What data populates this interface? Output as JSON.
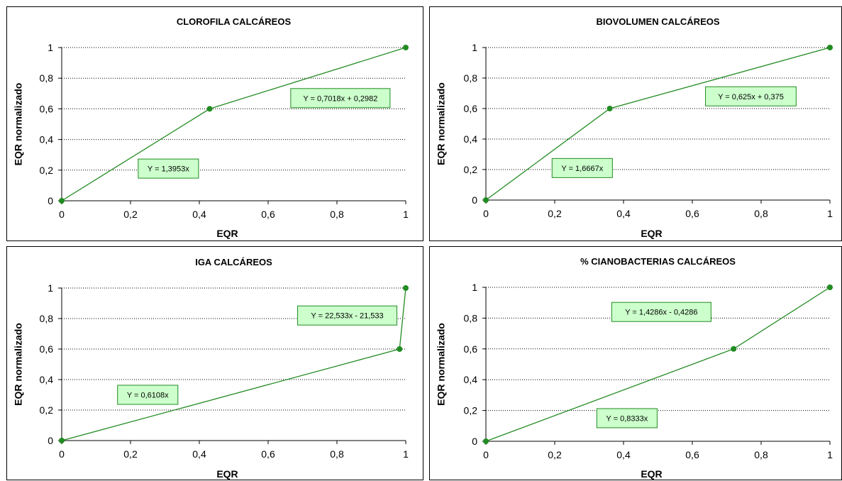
{
  "chart_data": [
    {
      "type": "line",
      "title": "CLOROFILA CALCÁREOS",
      "xlabel": "EQR",
      "ylabel": "EQR normalizado",
      "xlim": [
        0,
        1
      ],
      "ylim": [
        0,
        1
      ],
      "x_ticks": [
        "0",
        "0,2",
        "0,4",
        "0,6",
        "0,8",
        "1"
      ],
      "y_ticks": [
        "0",
        "0,2",
        "0,4",
        "0,6",
        "0,8",
        "1"
      ],
      "grid": "horizontal",
      "series": [
        {
          "color": "#228b22",
          "x": [
            0,
            0.43,
            1
          ],
          "y": [
            0,
            0.6,
            1
          ]
        }
      ],
      "annotations": [
        {
          "text": "Y = 0,7018x + 0,2982",
          "x": 0.81,
          "y": 0.67
        },
        {
          "text": "Y = 1,3953x",
          "x": 0.31,
          "y": 0.21
        }
      ]
    },
    {
      "type": "line",
      "title": "BIOVOLUMEN CALCÁREOS",
      "xlabel": "EQR",
      "ylabel": "EQR normalizado",
      "xlim": [
        0,
        1
      ],
      "ylim": [
        0,
        1
      ],
      "x_ticks": [
        "0",
        "0,2",
        "0,4",
        "0,6",
        "0,8",
        "1"
      ],
      "y_ticks": [
        "0",
        "0,2",
        "0,4",
        "0,6",
        "0,8",
        "1"
      ],
      "grid": "horizontal",
      "series": [
        {
          "color": "#228b22",
          "x": [
            0,
            0.36,
            1
          ],
          "y": [
            0,
            0.6,
            1
          ]
        }
      ],
      "annotations": [
        {
          "text": "Y = 0,625x + 0,375",
          "x": 0.77,
          "y": 0.68
        },
        {
          "text": "Y = 1,6667x",
          "x": 0.28,
          "y": 0.21
        }
      ]
    },
    {
      "type": "line",
      "title": "IGA CALCÁREOS",
      "xlabel": "EQR",
      "ylabel": "EQR normalizado",
      "xlim": [
        0,
        1
      ],
      "ylim": [
        0,
        1
      ],
      "x_ticks": [
        "0",
        "0,2",
        "0,4",
        "0,6",
        "0,8",
        "1"
      ],
      "y_ticks": [
        "0",
        "0,2",
        "0,4",
        "0,6",
        "0,8",
        "1"
      ],
      "grid": "horizontal",
      "series": [
        {
          "color": "#228b22",
          "x": [
            0,
            0.982,
            1
          ],
          "y": [
            0,
            0.6,
            1
          ]
        }
      ],
      "annotations": [
        {
          "text": "Y = 22,533x - 21,533",
          "x": 0.83,
          "y": 0.82
        },
        {
          "text": "Y = 0,6108x",
          "x": 0.25,
          "y": 0.3
        }
      ]
    },
    {
      "type": "line",
      "title": "% CIANOBACTERIAS CALCÁREOS",
      "xlabel": "EQR",
      "ylabel": "EQR normalizado",
      "xlim": [
        0,
        1
      ],
      "ylim": [
        0,
        1
      ],
      "x_ticks": [
        "0",
        "0,2",
        "0,4",
        "0,6",
        "0,8",
        "1"
      ],
      "y_ticks": [
        "0",
        "0,2",
        "0,4",
        "0,6",
        "0,8",
        "1"
      ],
      "grid": "horizontal",
      "series": [
        {
          "color": "#228b22",
          "x": [
            0,
            0.72,
            1
          ],
          "y": [
            0,
            0.6,
            1
          ]
        }
      ],
      "annotations": [
        {
          "text": "Y = 1,4286x - 0,4286",
          "x": 0.51,
          "y": 0.84
        },
        {
          "text": "Y = 0,8333x",
          "x": 0.41,
          "y": 0.15
        }
      ]
    }
  ]
}
